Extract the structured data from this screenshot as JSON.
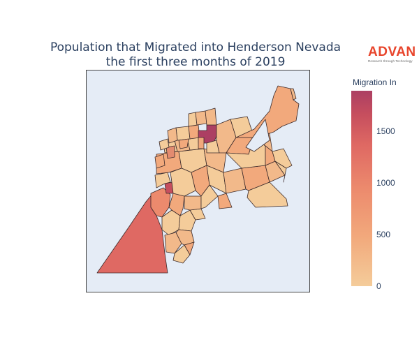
{
  "title_line1": "Population that Migrated into Henderson Nevada",
  "title_line2": "the first three months of 2019",
  "logo": {
    "word": "ADVAN",
    "tagline": "Research through Technology",
    "color": "#e8452c"
  },
  "map": {
    "background": "#e5ecf6",
    "region_border": "#3b2a2a",
    "map_type": "choropleth"
  },
  "colorbar": {
    "title": "Migration In",
    "ticks": [
      "0",
      "500",
      "1000",
      "1500"
    ],
    "range": [
      0,
      1880
    ],
    "colors": [
      "#f4cc9a",
      "#f2a97c",
      "#ec8a6d",
      "#df6963",
      "#c64e5e",
      "#ac3f63"
    ]
  }
}
